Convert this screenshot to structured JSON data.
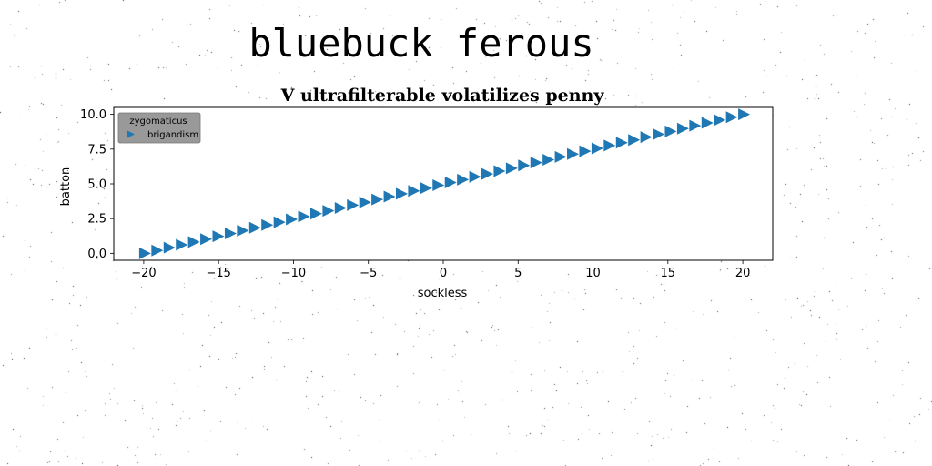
{
  "suptitle": "bluebuck ferous",
  "chart_data": {
    "type": "scatter",
    "title": "V ultrafilterable volatilizes penny",
    "xlabel": "sockless",
    "ylabel": "batton",
    "xlim": [
      -22,
      22
    ],
    "ylim": [
      -0.5,
      10.5
    ],
    "xticks": [
      -20,
      -15,
      -10,
      -5,
      0,
      5,
      10,
      15,
      20
    ],
    "xtick_labels": [
      "−20",
      "−15",
      "−10",
      "−5",
      "0",
      "5",
      "10",
      "15",
      "20"
    ],
    "yticks": [
      0,
      2.5,
      5,
      7.5,
      10
    ],
    "ytick_labels": [
      "0.0",
      "2.5",
      "5.0",
      "7.5",
      "10.0"
    ],
    "grid": false,
    "legend": {
      "title": "zygomaticus",
      "placement": "top-left"
    },
    "series": [
      {
        "name": "brigandism",
        "marker": "triangle-right",
        "color": "#1f77b4",
        "x": [
          -20,
          -19.1837,
          -18.3673,
          -17.551,
          -16.7347,
          -15.9184,
          -15.102,
          -14.2857,
          -13.4694,
          -12.6531,
          -11.8367,
          -11.0204,
          -10.2041,
          -9.3878,
          -8.5714,
          -7.7551,
          -6.9388,
          -6.1224,
          -5.3061,
          -4.4898,
          -3.6735,
          -2.8571,
          -2.0408,
          -1.2245,
          -0.4082,
          0.4082,
          1.2245,
          2.0408,
          2.8571,
          3.6735,
          4.4898,
          5.3061,
          6.1224,
          6.9388,
          7.7551,
          8.5714,
          9.3878,
          10.2041,
          11.0204,
          11.8367,
          12.6531,
          13.4694,
          14.2857,
          15.102,
          15.9184,
          16.7347,
          17.551,
          18.3673,
          19.1837,
          20
        ],
        "y": [
          0,
          0.2041,
          0.4082,
          0.6122,
          0.8163,
          1.0204,
          1.2245,
          1.4286,
          1.6327,
          1.8367,
          2.0408,
          2.2449,
          2.449,
          2.6531,
          2.8571,
          3.0612,
          3.2653,
          3.4694,
          3.6735,
          3.8776,
          4.0816,
          4.2857,
          4.4898,
          4.6939,
          4.898,
          5.102,
          5.3061,
          5.5102,
          5.7143,
          5.9184,
          6.1224,
          6.3265,
          6.5306,
          6.7347,
          6.9388,
          7.1429,
          7.3469,
          7.551,
          7.7551,
          7.9592,
          8.1633,
          8.3673,
          8.5714,
          8.7755,
          8.9796,
          9.1837,
          9.3878,
          9.5918,
          9.7959,
          10
        ]
      }
    ]
  }
}
